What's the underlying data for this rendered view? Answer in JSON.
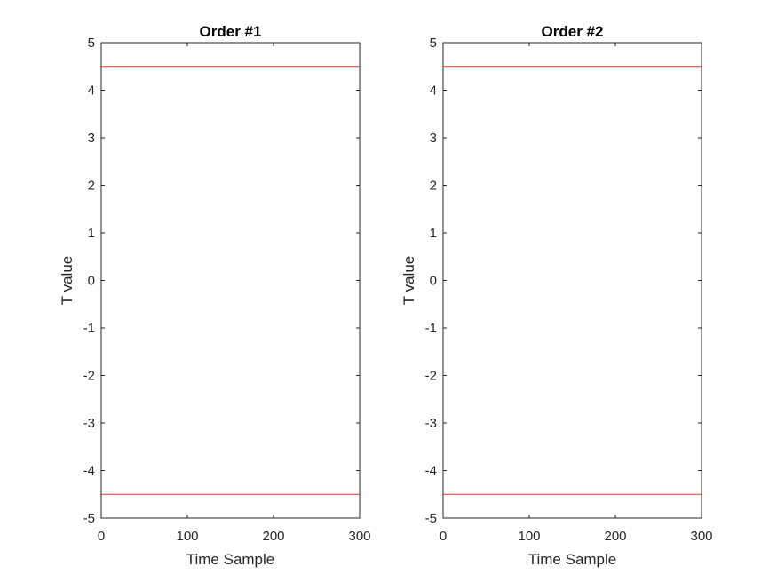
{
  "chart_data": [
    {
      "type": "line",
      "title": "Order #1",
      "xlabel": "Time Sample",
      "ylabel": "T value",
      "xlim": [
        0,
        300
      ],
      "ylim": [
        -5,
        5
      ],
      "xticks": [
        0,
        100,
        200,
        300
      ],
      "yticks": [
        -5,
        -4,
        -3,
        -2,
        -1,
        0,
        1,
        2,
        3,
        4,
        5
      ],
      "grid": false,
      "series": [
        {
          "x": [
            0,
            300
          ],
          "y": [
            4.5,
            4.5
          ],
          "color": "#e8302d"
        },
        {
          "x": [
            0,
            300
          ],
          "y": [
            -4.5,
            -4.5
          ],
          "color": "#e8302d"
        }
      ]
    },
    {
      "type": "line",
      "title": "Order #2",
      "xlabel": "Time Sample",
      "ylabel": "T value",
      "xlim": [
        0,
        300
      ],
      "ylim": [
        -5,
        5
      ],
      "xticks": [
        0,
        100,
        200,
        300
      ],
      "yticks": [
        -5,
        -4,
        -3,
        -2,
        -1,
        0,
        1,
        2,
        3,
        4,
        5
      ],
      "grid": false,
      "series": [
        {
          "x": [
            0,
            300
          ],
          "y": [
            4.5,
            4.5
          ],
          "color": "#e8302d"
        },
        {
          "x": [
            0,
            300
          ],
          "y": [
            -4.5,
            -4.5
          ],
          "color": "#e8302d"
        }
      ]
    }
  ]
}
